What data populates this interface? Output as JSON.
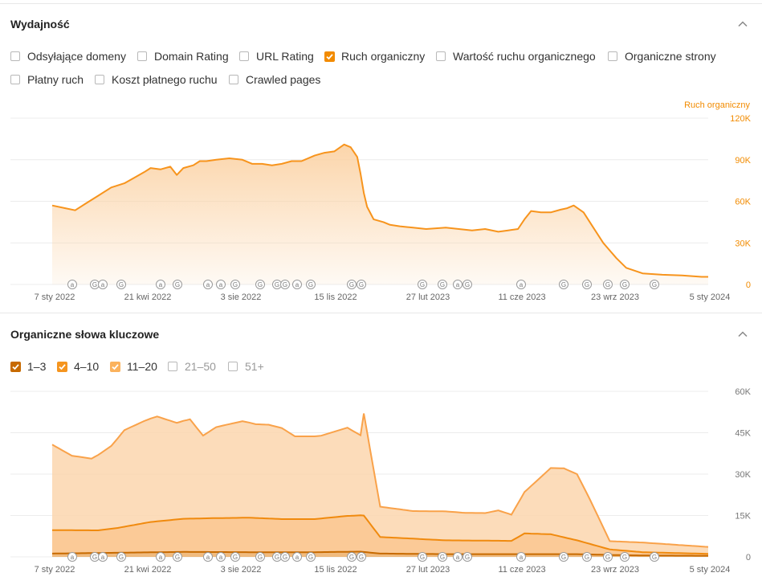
{
  "performance": {
    "title": "Wydajność",
    "options": [
      {
        "label": "Odsyłające domeny",
        "checked": false
      },
      {
        "label": "Domain Rating",
        "checked": false
      },
      {
        "label": "URL Rating",
        "checked": false
      },
      {
        "label": "Ruch organiczny",
        "checked": true
      },
      {
        "label": "Wartość ruchu organicznego",
        "checked": false
      },
      {
        "label": "Organiczne strony",
        "checked": false
      },
      {
        "label": "Płatny ruch",
        "checked": false
      },
      {
        "label": "Koszt płatnego ruchu",
        "checked": false
      },
      {
        "label": "Crawled pages",
        "checked": false
      }
    ],
    "axis_label": "Ruch organiczny"
  },
  "keywords": {
    "title": "Organiczne słowa kluczowe",
    "options": [
      {
        "label": "1–3",
        "checked": true,
        "color": "#c76a00"
      },
      {
        "label": "4–10",
        "checked": true,
        "color": "#f5951f"
      },
      {
        "label": "11–20",
        "checked": true,
        "color": "#fbb25c"
      },
      {
        "label": "21–50",
        "checked": false
      },
      {
        "label": "51+",
        "checked": false
      }
    ]
  },
  "colors": {
    "accent": "#f28b00",
    "line": "#f7941d",
    "fill_top": "#fbd3a6",
    "grid": "#ececec"
  },
  "chart_data": [
    {
      "type": "area",
      "title": "Ruch organiczny",
      "x_labels": [
        "7 sty 2022",
        "21 kwi 2022",
        "3 sie 2022",
        "15 lis 2022",
        "27 lut 2023",
        "11 cze 2023",
        "23 wrz 2023",
        "5 sty 2024"
      ],
      "y_ticks": [
        "0",
        "30K",
        "60K",
        "90K",
        "120K"
      ],
      "ylim": [
        0,
        120000
      ],
      "markers": [
        "a",
        "G",
        "a",
        "G",
        "a",
        "G",
        "a",
        "a",
        "G",
        "G",
        "G",
        "G",
        "a",
        "G",
        "G",
        "G",
        "G",
        "G",
        "a",
        "G",
        "a",
        "G",
        "G",
        "G",
        "G",
        "G"
      ],
      "series": [
        {
          "name": "Ruch organiczny",
          "t": [
            0,
            0.02,
            0.035,
            0.05,
            0.07,
            0.09,
            0.11,
            0.125,
            0.14,
            0.15,
            0.165,
            0.18,
            0.19,
            0.2,
            0.215,
            0.225,
            0.235,
            0.25,
            0.27,
            0.29,
            0.305,
            0.32,
            0.335,
            0.35,
            0.365,
            0.38,
            0.4,
            0.415,
            0.43,
            0.445,
            0.455,
            0.465,
            0.47,
            0.475,
            0.48,
            0.49,
            0.505,
            0.515,
            0.53,
            0.55,
            0.57,
            0.6,
            0.62,
            0.64,
            0.66,
            0.68,
            0.695,
            0.71,
            0.72,
            0.73,
            0.745,
            0.76,
            0.775,
            0.785,
            0.795,
            0.81,
            0.825,
            0.84,
            0.86,
            0.875,
            0.9,
            0.93,
            0.96,
            0.975,
            0.99,
            1.0
          ],
          "values": [
            57000,
            55000,
            53500,
            58000,
            64000,
            70000,
            73000,
            77000,
            81000,
            84000,
            83000,
            85000,
            79000,
            84000,
            86000,
            89000,
            89000,
            90000,
            91000,
            90000,
            87000,
            87000,
            86000,
            87000,
            89000,
            89000,
            93000,
            95000,
            96000,
            101000,
            99000,
            92000,
            80000,
            66000,
            56000,
            47000,
            45000,
            43000,
            42000,
            41000,
            40000,
            41000,
            40000,
            39000,
            40000,
            38000,
            39000,
            40000,
            47000,
            53000,
            52000,
            52000,
            54000,
            55000,
            57000,
            52000,
            41000,
            30000,
            19000,
            12000,
            8000,
            7000,
            6500,
            6000,
            5500,
            5500
          ]
        }
      ]
    },
    {
      "type": "area",
      "title": "Organiczne słowa kluczowe",
      "x_labels": [
        "7 sty 2022",
        "21 kwi 2022",
        "3 sie 2022",
        "15 lis 2022",
        "27 lut 2023",
        "11 cze 2023",
        "23 wrz 2023",
        "5 sty 2024"
      ],
      "y_ticks": [
        "0",
        "15K",
        "30K",
        "45K",
        "60K"
      ],
      "ylim": [
        0,
        60000
      ],
      "stacked": true,
      "markers": [
        "a",
        "G",
        "a",
        "G",
        "a",
        "G",
        "a",
        "a",
        "G",
        "G",
        "G",
        "G",
        "a",
        "G",
        "G",
        "G",
        "G",
        "G",
        "a",
        "G",
        "a",
        "G",
        "G",
        "G",
        "G",
        "G"
      ],
      "series": [
        {
          "name": "1–3",
          "t": [
            0,
            0.1,
            0.2,
            0.3,
            0.4,
            0.47,
            0.5,
            0.6,
            0.7,
            0.8,
            0.85,
            0.9,
            1.0
          ],
          "values": [
            1200,
            1500,
            1800,
            1700,
            1700,
            1900,
            1200,
            1000,
            1000,
            1000,
            700,
            500,
            400
          ]
        },
        {
          "name": "4–10",
          "t": [
            0,
            0.07,
            0.1,
            0.15,
            0.2,
            0.25,
            0.3,
            0.35,
            0.4,
            0.45,
            0.475,
            0.5,
            0.6,
            0.7,
            0.72,
            0.76,
            0.8,
            0.85,
            0.9,
            1.0
          ],
          "values": [
            8500,
            8200,
            9000,
            11000,
            12000,
            12300,
            12500,
            12000,
            12000,
            13000,
            13200,
            6000,
            5000,
            4800,
            7500,
            7200,
            5000,
            2000,
            1200,
            700
          ]
        },
        {
          "name": "11–20",
          "t": [
            0,
            0.03,
            0.06,
            0.09,
            0.11,
            0.14,
            0.16,
            0.19,
            0.21,
            0.23,
            0.25,
            0.27,
            0.29,
            0.31,
            0.33,
            0.35,
            0.37,
            0.39,
            0.41,
            0.43,
            0.45,
            0.47,
            0.475,
            0.5,
            0.55,
            0.6,
            0.63,
            0.66,
            0.68,
            0.7,
            0.72,
            0.76,
            0.78,
            0.8,
            0.82,
            0.85,
            0.9,
            1.0
          ],
          "values": [
            31000,
            27000,
            26000,
            30000,
            35000,
            37000,
            38000,
            35000,
            36000,
            30000,
            33000,
            34000,
            35000,
            34000,
            34000,
            33000,
            30000,
            30000,
            30000,
            31000,
            32000,
            29000,
            37000,
            11000,
            10000,
            10500,
            10000,
            10000,
            11000,
            9500,
            15000,
            24000,
            25000,
            24000,
            16000,
            3000,
            3500,
            2500
          ]
        }
      ]
    }
  ]
}
